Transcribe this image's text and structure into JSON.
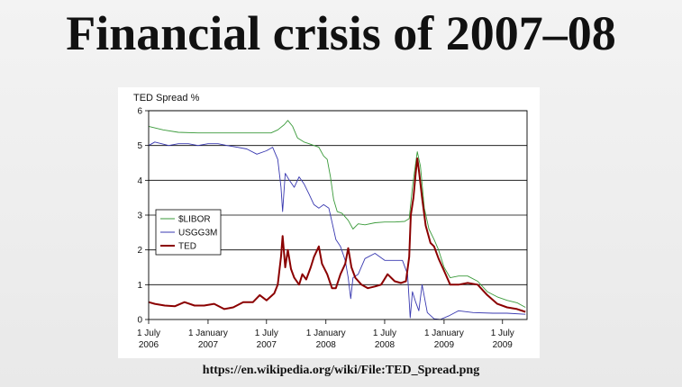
{
  "slide": {
    "title": "Financial crisis of 2007–08",
    "source": "https://en.wikipedia.org/wiki/File:TED_Spread.png"
  },
  "chart_data": {
    "type": "line",
    "title": "",
    "xlabel": "",
    "ylabel": "TED Spread %",
    "ylim": [
      0,
      6
    ],
    "xlim": [
      "2006-07-01",
      "2009-09-15"
    ],
    "yticks": [
      "0",
      "1",
      "2",
      "3",
      "4",
      "5",
      "6"
    ],
    "xticks": [
      {
        "date": "2006-07-01",
        "line1": "1 July",
        "line2": "2006"
      },
      {
        "date": "2007-01-01",
        "line1": "1 January",
        "line2": "2007"
      },
      {
        "date": "2007-07-01",
        "line1": "1 July",
        "line2": "2007"
      },
      {
        "date": "2008-01-01",
        "line1": "1 January",
        "line2": "2008"
      },
      {
        "date": "2008-07-01",
        "line1": "1 July",
        "line2": "2008"
      },
      {
        "date": "2009-01-01",
        "line1": "1 January",
        "line2": "2009"
      },
      {
        "date": "2009-07-01",
        "line1": "1 July",
        "line2": "2009"
      }
    ],
    "grid": true,
    "legend_position": "middle-left",
    "series": [
      {
        "name": "$LIBOR",
        "color": "#3a9a3a",
        "points": [
          [
            "2006-07-01",
            5.55
          ],
          [
            "2006-08-15",
            5.45
          ],
          [
            "2006-10-01",
            5.38
          ],
          [
            "2006-12-01",
            5.36
          ],
          [
            "2007-02-01",
            5.36
          ],
          [
            "2007-04-01",
            5.36
          ],
          [
            "2007-06-01",
            5.36
          ],
          [
            "2007-07-15",
            5.36
          ],
          [
            "2007-08-05",
            5.45
          ],
          [
            "2007-08-25",
            5.6
          ],
          [
            "2007-09-05",
            5.72
          ],
          [
            "2007-09-20",
            5.55
          ],
          [
            "2007-10-05",
            5.22
          ],
          [
            "2007-10-25",
            5.1
          ],
          [
            "2007-11-10",
            5.05
          ],
          [
            "2007-11-25",
            5.0
          ],
          [
            "2007-12-10",
            4.95
          ],
          [
            "2007-12-25",
            4.7
          ],
          [
            "2008-01-05",
            4.6
          ],
          [
            "2008-01-15",
            4.1
          ],
          [
            "2008-01-25",
            3.45
          ],
          [
            "2008-02-05",
            3.1
          ],
          [
            "2008-02-20",
            3.05
          ],
          [
            "2008-03-10",
            2.85
          ],
          [
            "2008-03-25",
            2.6
          ],
          [
            "2008-04-10",
            2.75
          ],
          [
            "2008-05-01",
            2.72
          ],
          [
            "2008-06-01",
            2.78
          ],
          [
            "2008-07-01",
            2.8
          ],
          [
            "2008-08-01",
            2.8
          ],
          [
            "2008-09-01",
            2.82
          ],
          [
            "2008-09-15",
            2.9
          ],
          [
            "2008-09-25",
            3.8
          ],
          [
            "2008-10-05",
            4.5
          ],
          [
            "2008-10-10",
            4.82
          ],
          [
            "2008-10-20",
            4.4
          ],
          [
            "2008-11-01",
            3.2
          ],
          [
            "2008-11-15",
            2.6
          ],
          [
            "2008-12-01",
            2.3
          ],
          [
            "2008-12-15",
            2.0
          ],
          [
            "2009-01-01",
            1.5
          ],
          [
            "2009-01-20",
            1.2
          ],
          [
            "2009-02-15",
            1.25
          ],
          [
            "2009-03-15",
            1.25
          ],
          [
            "2009-04-15",
            1.1
          ],
          [
            "2009-05-15",
            0.8
          ],
          [
            "2009-06-15",
            0.65
          ],
          [
            "2009-07-15",
            0.55
          ],
          [
            "2009-08-15",
            0.48
          ],
          [
            "2009-09-10",
            0.35
          ]
        ]
      },
      {
        "name": "USGG3M",
        "color": "#3838b0",
        "points": [
          [
            "2006-07-01",
            5.0
          ],
          [
            "2006-07-20",
            5.1
          ],
          [
            "2006-08-10",
            5.05
          ],
          [
            "2006-09-01",
            5.0
          ],
          [
            "2006-10-01",
            5.05
          ],
          [
            "2006-11-01",
            5.05
          ],
          [
            "2006-12-01",
            5.0
          ],
          [
            "2007-01-01",
            5.05
          ],
          [
            "2007-02-01",
            5.05
          ],
          [
            "2007-03-01",
            5.0
          ],
          [
            "2007-04-01",
            4.95
          ],
          [
            "2007-05-01",
            4.9
          ],
          [
            "2007-06-01",
            4.75
          ],
          [
            "2007-07-01",
            4.85
          ],
          [
            "2007-07-20",
            4.95
          ],
          [
            "2007-08-05",
            4.6
          ],
          [
            "2007-08-15",
            3.8
          ],
          [
            "2007-08-20",
            3.1
          ],
          [
            "2007-08-28",
            4.2
          ],
          [
            "2007-09-10",
            4.0
          ],
          [
            "2007-09-25",
            3.8
          ],
          [
            "2007-10-10",
            4.1
          ],
          [
            "2007-10-25",
            3.9
          ],
          [
            "2007-11-10",
            3.6
          ],
          [
            "2007-11-25",
            3.3
          ],
          [
            "2007-12-10",
            3.2
          ],
          [
            "2007-12-25",
            3.3
          ],
          [
            "2008-01-10",
            3.2
          ],
          [
            "2008-01-20",
            2.8
          ],
          [
            "2008-02-01",
            2.3
          ],
          [
            "2008-02-15",
            2.1
          ],
          [
            "2008-03-01",
            1.7
          ],
          [
            "2008-03-10",
            1.2
          ],
          [
            "2008-03-18",
            0.6
          ],
          [
            "2008-03-25",
            1.2
          ],
          [
            "2008-04-10",
            1.3
          ],
          [
            "2008-05-01",
            1.75
          ],
          [
            "2008-06-01",
            1.9
          ],
          [
            "2008-07-01",
            1.7
          ],
          [
            "2008-08-01",
            1.7
          ],
          [
            "2008-08-25",
            1.7
          ],
          [
            "2008-09-10",
            1.3
          ],
          [
            "2008-09-18",
            0.05
          ],
          [
            "2008-09-25",
            0.8
          ],
          [
            "2008-10-05",
            0.5
          ],
          [
            "2008-10-15",
            0.25
          ],
          [
            "2008-10-25",
            1.0
          ],
          [
            "2008-11-10",
            0.2
          ],
          [
            "2008-12-01",
            0.02
          ],
          [
            "2008-12-20",
            0.0
          ],
          [
            "2009-01-15",
            0.1
          ],
          [
            "2009-02-15",
            0.25
          ],
          [
            "2009-04-01",
            0.2
          ],
          [
            "2009-06-01",
            0.18
          ],
          [
            "2009-07-15",
            0.18
          ],
          [
            "2009-09-10",
            0.15
          ]
        ]
      },
      {
        "name": "TED",
        "color": "#8b0000",
        "points": [
          [
            "2006-07-01",
            0.5
          ],
          [
            "2006-07-20",
            0.45
          ],
          [
            "2006-08-20",
            0.4
          ],
          [
            "2006-09-20",
            0.38
          ],
          [
            "2006-10-20",
            0.5
          ],
          [
            "2006-11-20",
            0.4
          ],
          [
            "2006-12-20",
            0.4
          ],
          [
            "2007-01-20",
            0.45
          ],
          [
            "2007-02-20",
            0.3
          ],
          [
            "2007-03-20",
            0.35
          ],
          [
            "2007-04-20",
            0.5
          ],
          [
            "2007-05-20",
            0.5
          ],
          [
            "2007-06-10",
            0.7
          ],
          [
            "2007-07-01",
            0.55
          ],
          [
            "2007-07-25",
            0.75
          ],
          [
            "2007-08-05",
            1.0
          ],
          [
            "2007-08-15",
            1.8
          ],
          [
            "2007-08-20",
            2.4
          ],
          [
            "2007-08-28",
            1.5
          ],
          [
            "2007-09-05",
            2.0
          ],
          [
            "2007-09-15",
            1.45
          ],
          [
            "2007-09-25",
            1.2
          ],
          [
            "2007-10-10",
            1.0
          ],
          [
            "2007-10-20",
            1.3
          ],
          [
            "2007-11-01",
            1.15
          ],
          [
            "2007-11-15",
            1.5
          ],
          [
            "2007-11-25",
            1.8
          ],
          [
            "2007-12-10",
            2.1
          ],
          [
            "2007-12-20",
            1.6
          ],
          [
            "2008-01-05",
            1.3
          ],
          [
            "2008-01-20",
            0.9
          ],
          [
            "2008-02-01",
            0.9
          ],
          [
            "2008-02-15",
            1.3
          ],
          [
            "2008-03-01",
            1.6
          ],
          [
            "2008-03-10",
            2.05
          ],
          [
            "2008-03-20",
            1.5
          ],
          [
            "2008-04-01",
            1.2
          ],
          [
            "2008-04-20",
            1.0
          ],
          [
            "2008-05-10",
            0.9
          ],
          [
            "2008-06-01",
            0.95
          ],
          [
            "2008-06-20",
            1.0
          ],
          [
            "2008-07-10",
            1.3
          ],
          [
            "2008-08-01",
            1.1
          ],
          [
            "2008-08-20",
            1.05
          ],
          [
            "2008-09-05",
            1.1
          ],
          [
            "2008-09-15",
            1.8
          ],
          [
            "2008-09-20",
            3.0
          ],
          [
            "2008-09-28",
            3.5
          ],
          [
            "2008-10-05",
            4.2
          ],
          [
            "2008-10-10",
            4.63
          ],
          [
            "2008-10-15",
            4.3
          ],
          [
            "2008-10-25",
            3.5
          ],
          [
            "2008-11-05",
            2.7
          ],
          [
            "2008-11-20",
            2.2
          ],
          [
            "2008-12-01",
            2.1
          ],
          [
            "2008-12-15",
            1.75
          ],
          [
            "2009-01-01",
            1.4
          ],
          [
            "2009-01-20",
            1.0
          ],
          [
            "2009-02-15",
            1.0
          ],
          [
            "2009-03-15",
            1.05
          ],
          [
            "2009-04-15",
            1.0
          ],
          [
            "2009-05-15",
            0.7
          ],
          [
            "2009-06-15",
            0.45
          ],
          [
            "2009-07-15",
            0.35
          ],
          [
            "2009-08-15",
            0.3
          ],
          [
            "2009-09-10",
            0.22
          ]
        ]
      }
    ]
  }
}
